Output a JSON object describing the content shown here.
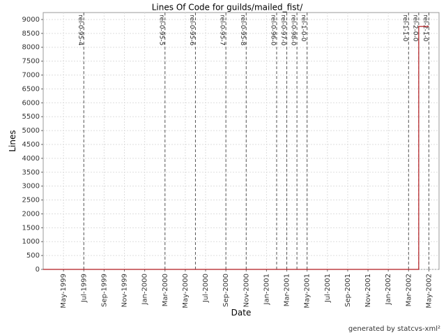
{
  "chart_data": {
    "type": "line",
    "title": "Lines Of Code for guilds/mailed_fist/",
    "x_label": "Date",
    "y_label": "Lines",
    "series": [
      {
        "name": "Lines",
        "color": "#b0191e",
        "x": [
          "1999-03",
          "2002-04",
          "2002-04",
          "2002-05"
        ],
        "values": [
          0,
          0,
          8750,
          8750
        ]
      }
    ],
    "xlim": [
      "1999-03",
      "2002-06"
    ],
    "xticks": [
      {
        "value": "1999-05",
        "label": "May-1999"
      },
      {
        "value": "1999-07",
        "label": "Jul-1999"
      },
      {
        "value": "1999-09",
        "label": "Sep-1999"
      },
      {
        "value": "1999-11",
        "label": "Nov-1999"
      },
      {
        "value": "2000-01",
        "label": "Jan-2000"
      },
      {
        "value": "2000-03",
        "label": "Mar-2000"
      },
      {
        "value": "2000-05",
        "label": "May-2000"
      },
      {
        "value": "2000-07",
        "label": "Jul-2000"
      },
      {
        "value": "2000-09",
        "label": "Sep-2000"
      },
      {
        "value": "2000-11",
        "label": "Nov-2000"
      },
      {
        "value": "2001-01",
        "label": "Jan-2001"
      },
      {
        "value": "2001-03",
        "label": "Mar-2001"
      },
      {
        "value": "2001-05",
        "label": "May-2001"
      },
      {
        "value": "2001-07",
        "label": "Jul-2001"
      },
      {
        "value": "2001-09",
        "label": "Sep-2001"
      },
      {
        "value": "2001-11",
        "label": "Nov-2001"
      },
      {
        "value": "2002-01",
        "label": "Jan-2002"
      },
      {
        "value": "2002-03",
        "label": "Mar-2002"
      },
      {
        "value": "2002-05",
        "label": "May-2002"
      }
    ],
    "ylim": [
      0,
      9250
    ],
    "yticks": [
      0,
      500,
      1000,
      1500,
      2000,
      2500,
      3000,
      3500,
      4000,
      4500,
      5000,
      5500,
      6000,
      6500,
      7000,
      7500,
      8000,
      8500,
      9000
    ],
    "grid": true,
    "annotations": [
      {
        "x": "1999-07",
        "label": "rel-0-95-4"
      },
      {
        "x": "2000-03",
        "label": "rel-0-95-5"
      },
      {
        "x": "2000-06",
        "label": "rel-0-95-6"
      },
      {
        "x": "2000-09",
        "label": "rel-0-95-7"
      },
      {
        "x": "2000-11",
        "label": "rel-0-95-8"
      },
      {
        "x": "2001-02",
        "label": "rel-0-96-0"
      },
      {
        "x": "2001-03",
        "label": "rel-0-97-0"
      },
      {
        "x": "2001-04",
        "label": "rel-0-98-0"
      },
      {
        "x": "2001-05",
        "label": "rel-1-0-0"
      },
      {
        "x": "2002-03",
        "label": "rel-1-1-0"
      },
      {
        "x": "2002-04",
        "label": "rel-2-0-0"
      },
      {
        "x": "2002-05",
        "label": "rel-2-1-0"
      }
    ]
  },
  "footer": "generated by statcvs-xml²"
}
